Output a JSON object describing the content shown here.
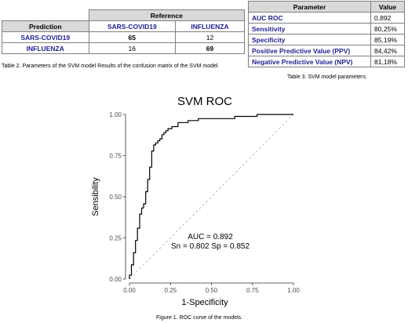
{
  "table2": {
    "reference_header": "Reference",
    "prediction_header": "Prediction",
    "col_sars": "SARS-COVID19",
    "col_flu": "INFLUENZA",
    "rows": [
      {
        "label": "SARS-COVID19",
        "v1": "65",
        "v2": "12"
      },
      {
        "label": "INFLUENZA",
        "v1": "16",
        "v2": "69"
      }
    ],
    "caption": "Table 2. Parameters of the SVM model Results of the confusion matrix of the SVM model."
  },
  "table3": {
    "param_header": "Parameter",
    "value_header": "Value",
    "rows": [
      {
        "param": "AUC ROC",
        "value": "0,892"
      },
      {
        "param": "Sensitivity",
        "value": "80,25%"
      },
      {
        "param": "Specificity",
        "value": "85,19%"
      },
      {
        "param": "Positive Predictive Value (PPV)",
        "value": "84,42%"
      },
      {
        "param": "Negative Predictive Value (NPV)",
        "value": "81,18%"
      }
    ],
    "caption": "Table 3. SVM model parameters."
  },
  "figure_caption": "Figure 1. ROC curve of the models.",
  "chart_data": {
    "type": "line",
    "title": "SVM ROC",
    "xlabel": "1-Specificity",
    "ylabel": "Sensibility",
    "xlim": [
      0,
      1
    ],
    "ylim": [
      0,
      1
    ],
    "xticks": [
      "0.00",
      "0.25",
      "0.50",
      "0.75",
      "1.00"
    ],
    "yticks": [
      "0.00",
      "0.25",
      "0.50",
      "0.75",
      "1.00"
    ],
    "annotation_line1": "AUC =  0.892",
    "annotation_line2": "Sn =  0.802  Sp =  0.852",
    "diagonal": true,
    "series": [
      {
        "color": "#000000",
        "x": [
          0.0,
          0.0,
          0.012,
          0.012,
          0.025,
          0.025,
          0.037,
          0.037,
          0.049,
          0.049,
          0.062,
          0.062,
          0.074,
          0.074,
          0.086,
          0.086,
          0.099,
          0.099,
          0.111,
          0.111,
          0.123,
          0.123,
          0.136,
          0.136,
          0.148,
          0.148,
          0.16,
          0.16,
          0.173,
          0.173,
          0.185,
          0.185,
          0.198,
          0.198,
          0.21,
          0.21,
          0.222,
          0.222,
          0.235,
          0.235,
          0.259,
          0.259,
          0.296,
          0.296,
          0.358,
          0.358,
          0.42,
          0.42,
          0.642,
          0.642,
          0.778,
          0.778,
          0.827,
          0.827,
          1.0
        ],
        "y": [
          0.0,
          0.025,
          0.025,
          0.086,
          0.086,
          0.16,
          0.16,
          0.235,
          0.235,
          0.309,
          0.309,
          0.395,
          0.395,
          0.432,
          0.432,
          0.457,
          0.457,
          0.531,
          0.531,
          0.605,
          0.605,
          0.68,
          0.68,
          0.778,
          0.778,
          0.815,
          0.815,
          0.827,
          0.827,
          0.84,
          0.84,
          0.852,
          0.852,
          0.877,
          0.877,
          0.889,
          0.889,
          0.901,
          0.901,
          0.914,
          0.914,
          0.926,
          0.926,
          0.951,
          0.951,
          0.963,
          0.963,
          0.975,
          0.975,
          0.988,
          0.988,
          1.0,
          1.0,
          1.0,
          1.0
        ]
      }
    ]
  }
}
